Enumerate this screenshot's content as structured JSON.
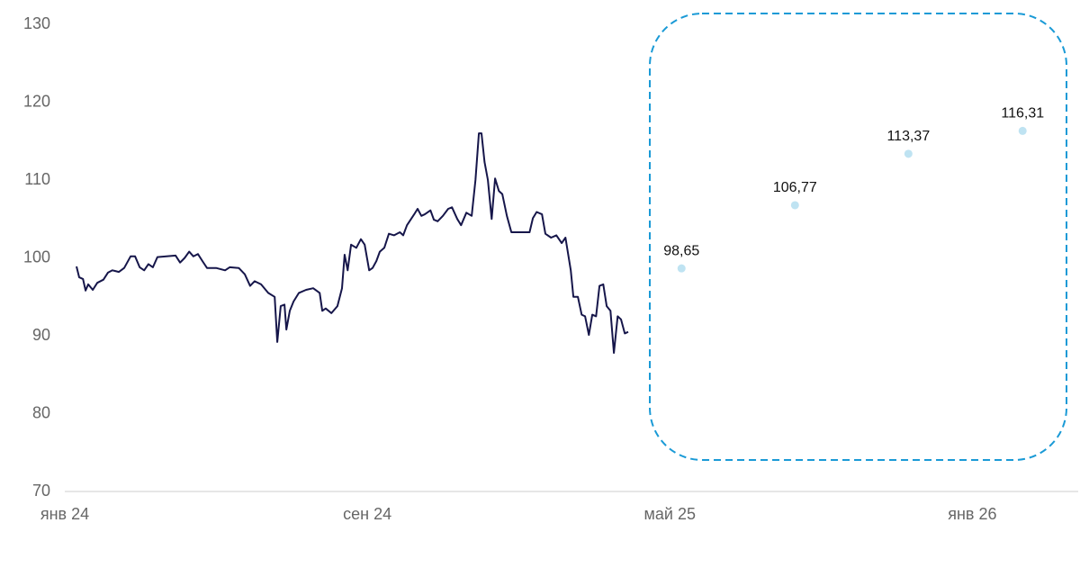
{
  "chart_data": {
    "type": "line",
    "xlim": [
      0,
      26.8
    ],
    "xticks": [
      {
        "value": 0,
        "label": "янв 24"
      },
      {
        "value": 8,
        "label": "сен 24"
      },
      {
        "value": 16,
        "label": "май 25"
      },
      {
        "value": 24,
        "label": "янв 26"
      }
    ],
    "ylim": [
      70,
      130
    ],
    "yticks": [
      70,
      80,
      90,
      100,
      110,
      120,
      130
    ],
    "grid": false,
    "series": [
      {
        "color": "#16164a",
        "mode": "line",
        "x": [
          0.31,
          0.38,
          0.48,
          0.55,
          0.62,
          0.74,
          0.86,
          1.02,
          1.14,
          1.26,
          1.43,
          1.57,
          1.74,
          1.86,
          1.98,
          2.1,
          2.21,
          2.33,
          2.45,
          2.69,
          2.93,
          3.05,
          3.17,
          3.29,
          3.4,
          3.52,
          3.64,
          3.76,
          4.0,
          4.24,
          4.36,
          4.6,
          4.76,
          4.9,
          5.02,
          5.19,
          5.38,
          5.55,
          5.62,
          5.71,
          5.81,
          5.86,
          5.95,
          6.05,
          6.19,
          6.38,
          6.57,
          6.74,
          6.81,
          6.9,
          7.05,
          7.21,
          7.33,
          7.4,
          7.48,
          7.57,
          7.71,
          7.83,
          7.93,
          8.05,
          8.14,
          8.24,
          8.33,
          8.45,
          8.57,
          8.71,
          8.86,
          8.95,
          9.05,
          9.24,
          9.33,
          9.43,
          9.52,
          9.67,
          9.76,
          9.86,
          10.0,
          10.14,
          10.24,
          10.38,
          10.48,
          10.62,
          10.76,
          10.86,
          10.95,
          11.02,
          11.1,
          11.19,
          11.29,
          11.38,
          11.48,
          11.57,
          11.69,
          11.81,
          12.1,
          12.29,
          12.38,
          12.48,
          12.62,
          12.71,
          12.86,
          13.0,
          13.14,
          13.24,
          13.38,
          13.45,
          13.57,
          13.67,
          13.76,
          13.86,
          13.95,
          14.05,
          14.14,
          14.24,
          14.33,
          14.43,
          14.52,
          14.62,
          14.71,
          14.81,
          14.9
        ],
        "values": [
          98.9,
          97.5,
          97.3,
          95.8,
          96.6,
          95.9,
          96.8,
          97.2,
          98.1,
          98.4,
          98.2,
          98.7,
          100.2,
          100.2,
          98.8,
          98.4,
          99.2,
          98.8,
          100.1,
          100.2,
          100.3,
          99.4,
          100.0,
          100.8,
          100.2,
          100.5,
          99.6,
          98.7,
          98.7,
          98.4,
          98.8,
          98.7,
          97.9,
          96.4,
          97.0,
          96.6,
          95.5,
          95.0,
          89.2,
          93.8,
          94.0,
          90.8,
          93.2,
          94.4,
          95.5,
          95.9,
          96.1,
          95.5,
          93.2,
          93.5,
          92.9,
          93.8,
          96.1,
          100.4,
          98.4,
          101.7,
          101.3,
          102.4,
          101.7,
          98.4,
          98.7,
          99.6,
          100.8,
          101.3,
          103.1,
          102.9,
          103.3,
          102.9,
          104.2,
          105.6,
          106.3,
          105.4,
          105.6,
          106.1,
          104.9,
          104.7,
          105.4,
          106.3,
          106.5,
          105.0,
          104.2,
          105.8,
          105.4,
          110.0,
          116.0,
          116.0,
          112.3,
          110.0,
          105.0,
          110.2,
          108.6,
          108.2,
          105.4,
          103.3,
          103.3,
          103.3,
          105.1,
          105.9,
          105.6,
          103.1,
          102.6,
          102.9,
          101.9,
          102.6,
          98.4,
          95.0,
          95.0,
          92.7,
          92.5,
          90.1,
          92.7,
          92.5,
          96.4,
          96.6,
          93.8,
          93.2,
          87.8,
          92.5,
          92.1,
          90.3,
          90.5
        ]
      },
      {
        "color": "#bfe3f2",
        "mode": "markers",
        "x": [
          16.31,
          19.31,
          22.31,
          25.33
        ],
        "values": [
          98.65,
          106.77,
          113.37,
          116.31
        ],
        "value_labels": [
          "98,65",
          "106,77",
          "113,37",
          "116,31"
        ]
      }
    ]
  }
}
